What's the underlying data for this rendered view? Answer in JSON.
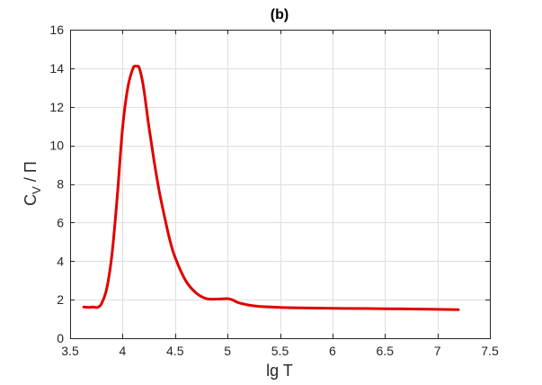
{
  "chart_data": {
    "type": "line",
    "title": "(b)",
    "xlabel": "lg T",
    "ylabel_main": "C",
    "ylabel_sub": "V",
    "ylabel_rest": " / Π",
    "xlim": [
      3.5,
      7.5
    ],
    "ylim": [
      0,
      16
    ],
    "xticks": [
      3.5,
      4,
      4.5,
      5,
      5.5,
      6,
      6.5,
      7,
      7.5
    ],
    "xtick_labels": [
      "3.5",
      "4",
      "4.5",
      "5",
      "5.5",
      "6",
      "6.5",
      "7",
      "7.5"
    ],
    "yticks": [
      0,
      2,
      4,
      6,
      8,
      10,
      12,
      14,
      16
    ],
    "ytick_labels": [
      "0",
      "2",
      "4",
      "6",
      "8",
      "10",
      "12",
      "14",
      "16"
    ],
    "grid": true,
    "line_color": "#e00000",
    "series": [
      {
        "x": [
          3.63,
          3.68,
          3.72,
          3.76,
          3.8,
          3.85,
          3.9,
          3.95,
          4.0,
          4.05,
          4.1,
          4.13,
          4.16,
          4.2,
          4.25,
          4.3,
          4.35,
          4.4,
          4.45,
          4.5,
          4.6,
          4.7,
          4.8,
          4.9,
          5.0,
          5.05,
          5.1,
          5.2,
          5.3,
          5.5,
          5.75,
          6.0,
          6.5,
          7.0,
          7.2
        ],
        "y": [
          1.62,
          1.6,
          1.62,
          1.6,
          1.8,
          2.6,
          4.4,
          7.4,
          10.9,
          13.0,
          14.0,
          14.1,
          14.0,
          13.0,
          11.0,
          9.2,
          7.6,
          6.3,
          5.1,
          4.2,
          3.0,
          2.35,
          2.05,
          2.03,
          2.05,
          1.98,
          1.85,
          1.72,
          1.65,
          1.6,
          1.57,
          1.55,
          1.53,
          1.5,
          1.48
        ]
      }
    ]
  }
}
